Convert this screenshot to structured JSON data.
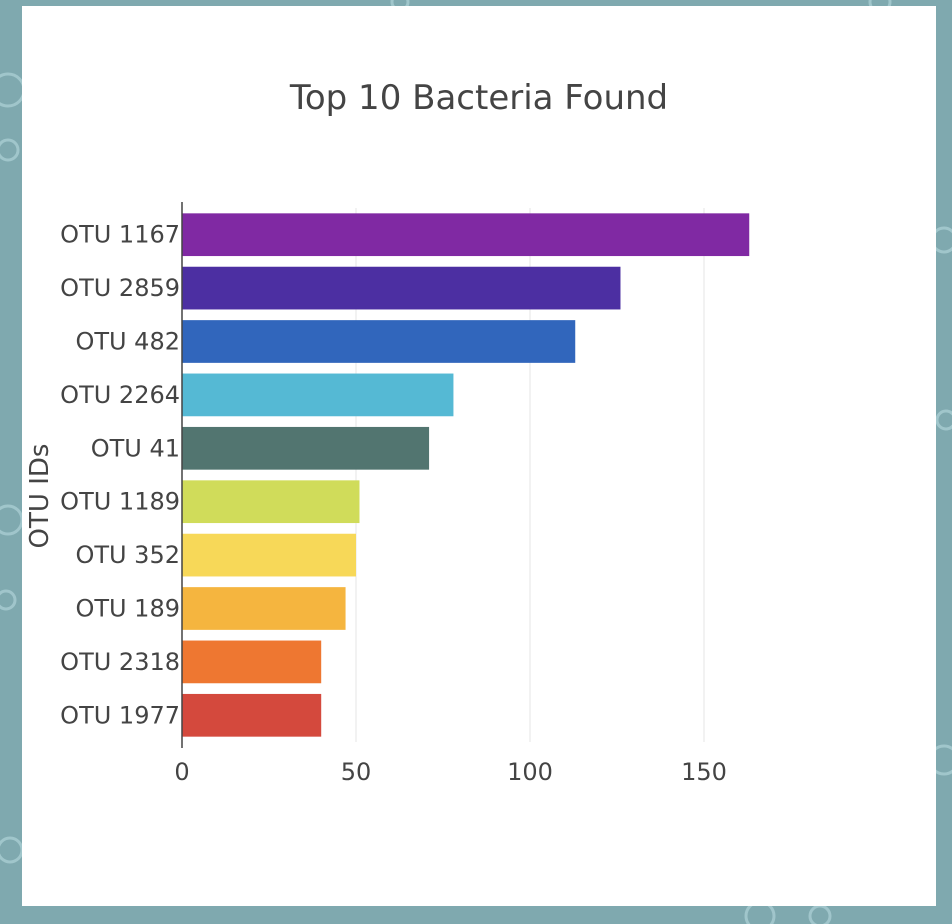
{
  "theme": {
    "page_background": "#7fa9af",
    "card_background": "#ffffff",
    "grid_color": "#e6e6e6",
    "text_color": "#444444",
    "axis_color": "#444444"
  },
  "chart_data": {
    "type": "bar",
    "orientation": "horizontal",
    "title": "Top 10 Bacteria Found",
    "xlabel": "",
    "ylabel": "OTU IDs",
    "xlim": [
      0,
      200
    ],
    "xticks": [
      0,
      50,
      100,
      150
    ],
    "grid": "vertical",
    "legend": "none",
    "categories": [
      "OTU 1167",
      "OTU 2859",
      "OTU 482",
      "OTU 2264",
      "OTU 41",
      "OTU 1189",
      "OTU 352",
      "OTU 189",
      "OTU 2318",
      "OTU 1977"
    ],
    "values": [
      163,
      126,
      113,
      78,
      71,
      51,
      50,
      47,
      40,
      40
    ],
    "colors": [
      "#8029a3",
      "#4c2fa2",
      "#3166bc",
      "#55b9d4",
      "#527570",
      "#d0dc5a",
      "#f7d858",
      "#f5b53f",
      "#ee7731",
      "#d4493d"
    ]
  }
}
